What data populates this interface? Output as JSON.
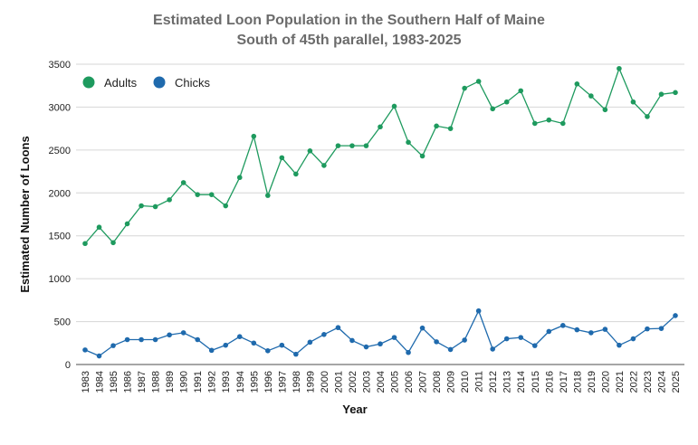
{
  "chart_data": {
    "type": "line",
    "title": "Estimated Loon Population in the Southern Half of Maine",
    "subtitle": "South of 45th parallel, 1983-2025",
    "xlabel": "Year",
    "ylabel": "Estimated Number of Loons",
    "ylim": [
      0,
      3500
    ],
    "yticks": [
      0,
      500,
      1000,
      1500,
      2000,
      2500,
      3000,
      3500
    ],
    "grid": true,
    "legend_position": "top-left",
    "x": [
      1983,
      1984,
      1985,
      1986,
      1987,
      1988,
      1989,
      1990,
      1991,
      1992,
      1993,
      1994,
      1995,
      1996,
      1997,
      1998,
      1999,
      2000,
      2001,
      2002,
      2003,
      2004,
      2005,
      2006,
      2007,
      2008,
      2009,
      2010,
      2011,
      2012,
      2013,
      2014,
      2015,
      2016,
      2017,
      2018,
      2019,
      2020,
      2021,
      2022,
      2023,
      2024,
      2025
    ],
    "series": [
      {
        "name": "Adults",
        "color": "#1e9a5e",
        "values": [
          1410,
          1600,
          1420,
          1640,
          1850,
          1840,
          1920,
          2120,
          1980,
          1980,
          1850,
          2180,
          2660,
          1970,
          2410,
          2220,
          2490,
          2320,
          2550,
          2550,
          2550,
          2770,
          3010,
          2590,
          2430,
          2780,
          2750,
          3220,
          3300,
          2980,
          3060,
          3190,
          2810,
          2850,
          2810,
          3270,
          3130,
          2970,
          3450,
          3060,
          2890,
          3150,
          3170
        ]
      },
      {
        "name": "Chicks",
        "color": "#1f6aad",
        "values": [
          170,
          100,
          220,
          290,
          290,
          290,
          345,
          370,
          290,
          165,
          225,
          325,
          250,
          160,
          225,
          120,
          260,
          350,
          430,
          280,
          205,
          240,
          315,
          140,
          425,
          265,
          175,
          285,
          625,
          180,
          300,
          315,
          220,
          385,
          455,
          405,
          370,
          410,
          225,
          300,
          415,
          420,
          570
        ]
      }
    ]
  }
}
